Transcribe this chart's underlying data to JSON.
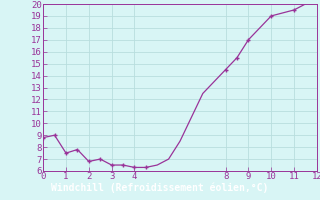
{
  "x": [
    0,
    0.5,
    1,
    1.5,
    2,
    2.5,
    3,
    3.5,
    4,
    4.5,
    5,
    5.5,
    6,
    6.5,
    7,
    7.5,
    8,
    8.5,
    9,
    10,
    11,
    12
  ],
  "y": [
    8.8,
    9.0,
    7.5,
    7.8,
    6.8,
    7.0,
    6.5,
    6.5,
    6.3,
    6.3,
    6.5,
    7.0,
    8.5,
    10.5,
    12.5,
    13.5,
    14.5,
    15.5,
    17.0,
    19.0,
    19.5,
    20.5
  ],
  "marker_x": [
    0,
    0.5,
    1,
    1.5,
    2,
    2.5,
    3,
    3.5,
    4,
    4.5,
    8,
    8.5,
    9,
    10,
    11,
    12
  ],
  "marker_y": [
    8.8,
    9.0,
    7.5,
    7.8,
    6.8,
    7.0,
    6.5,
    6.5,
    6.3,
    6.3,
    14.5,
    15.5,
    17.0,
    19.0,
    19.5,
    20.5
  ],
  "line_color": "#993399",
  "marker_color": "#993399",
  "bg_color": "#d8f5f5",
  "grid_color": "#b8dede",
  "xlabel": "Windchill (Refroidissement éolien,°C)",
  "xlabel_bar_color": "#993399",
  "xlim": [
    0,
    12
  ],
  "ylim_min": 6,
  "ylim_max": 20,
  "yticks": [
    6,
    7,
    8,
    9,
    10,
    11,
    12,
    13,
    14,
    15,
    16,
    17,
    18,
    19,
    20
  ],
  "xticks": [
    0,
    1,
    2,
    3,
    4,
    8,
    9,
    10,
    11,
    12
  ],
  "tick_color": "#993399",
  "spine_color": "#993399",
  "tick_fontsize": 6.5,
  "label_fontsize": 7
}
